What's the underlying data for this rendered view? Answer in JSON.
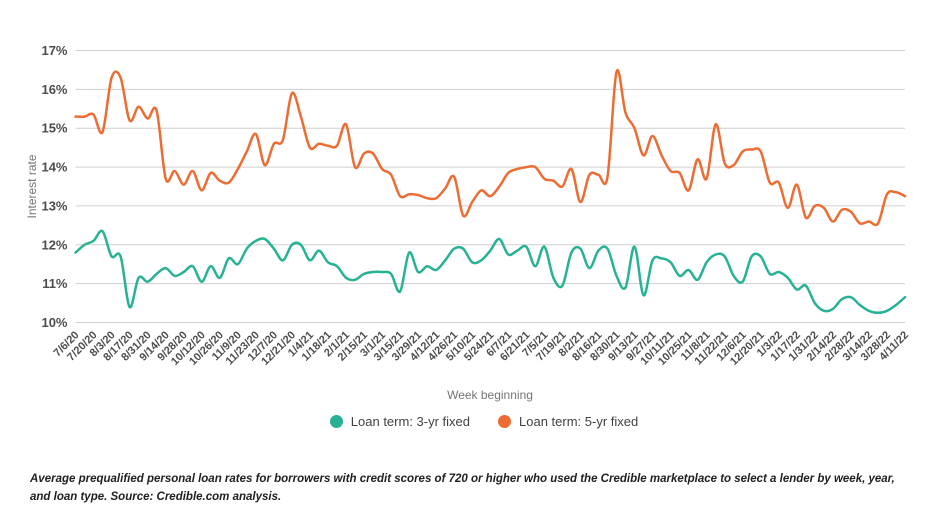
{
  "chart_data": {
    "type": "line",
    "title": "",
    "xlabel": "Week beginning",
    "ylabel": "Interest rate",
    "ylim": [
      10,
      17
    ],
    "yticks": [
      "10%",
      "11%",
      "12%",
      "13%",
      "14%",
      "15%",
      "16%",
      "17%"
    ],
    "grid": "horizontal",
    "legend_position": "bottom",
    "x_label_every_n_points": 2,
    "x": [
      "7/6/20",
      "7/13/20",
      "7/20/20",
      "7/27/20",
      "8/3/20",
      "8/10/20",
      "8/17/20",
      "8/24/20",
      "8/31/20",
      "9/7/20",
      "9/14/20",
      "9/21/20",
      "9/28/20",
      "10/5/20",
      "10/12/20",
      "10/19/20",
      "10/26/20",
      "11/2/20",
      "11/9/20",
      "11/16/20",
      "11/23/20",
      "11/30/20",
      "12/7/20",
      "12/14/20",
      "12/21/20",
      "12/28/20",
      "1/4/21",
      "1/11/21",
      "1/18/21",
      "1/25/21",
      "2/1/21",
      "2/8/21",
      "2/15/21",
      "2/22/21",
      "3/1/21",
      "3/8/21",
      "3/15/21",
      "3/22/21",
      "3/29/21",
      "4/5/21",
      "4/12/21",
      "4/19/21",
      "4/26/21",
      "5/3/21",
      "5/10/21",
      "5/17/21",
      "5/24/21",
      "5/31/21",
      "6/7/21",
      "6/14/21",
      "6/21/21",
      "6/28/21",
      "7/5/21",
      "7/12/21",
      "7/19/21",
      "7/26/21",
      "8/2/21",
      "8/9/21",
      "8/16/21",
      "8/23/21",
      "8/30/21",
      "9/6/21",
      "9/13/21",
      "9/20/21",
      "9/27/21",
      "10/4/21",
      "10/11/21",
      "10/18/21",
      "10/25/21",
      "11/1/21",
      "11/8/21",
      "11/15/21",
      "11/22/21",
      "11/29/21",
      "12/6/21",
      "12/13/21",
      "12/20/21",
      "12/27/21",
      "1/3/22",
      "1/10/22",
      "1/17/22",
      "1/24/22",
      "1/31/22",
      "2/7/22",
      "2/14/22",
      "2/21/22",
      "2/28/22",
      "3/7/22",
      "3/14/22",
      "3/21/22",
      "3/28/22",
      "4/4/22",
      "4/11/22"
    ],
    "series": [
      {
        "name": "Loan term: 3-yr fixed",
        "color": "#26b293",
        "values": [
          11.8,
          12.0,
          12.1,
          12.35,
          11.7,
          11.7,
          10.4,
          11.15,
          11.05,
          11.25,
          11.4,
          11.2,
          11.3,
          11.45,
          11.05,
          11.45,
          11.15,
          11.65,
          11.5,
          11.9,
          12.1,
          12.15,
          11.9,
          11.6,
          12.0,
          12.0,
          11.6,
          11.85,
          11.55,
          11.45,
          11.15,
          11.1,
          11.25,
          11.3,
          11.3,
          11.25,
          10.8,
          11.8,
          11.3,
          11.45,
          11.35,
          11.6,
          11.9,
          11.9,
          11.55,
          11.6,
          11.85,
          12.15,
          11.75,
          11.85,
          11.95,
          11.45,
          11.95,
          11.15,
          10.95,
          11.8,
          11.9,
          11.4,
          11.85,
          11.9,
          11.2,
          10.9,
          11.95,
          10.7,
          11.6,
          11.65,
          11.55,
          11.2,
          11.35,
          11.1,
          11.55,
          11.75,
          11.7,
          11.2,
          11.05,
          11.7,
          11.7,
          11.25,
          11.3,
          11.15,
          10.85,
          10.95,
          10.5,
          10.3,
          10.35,
          10.6,
          10.65,
          10.45,
          10.3,
          10.25,
          10.3,
          10.45,
          10.65
        ]
      },
      {
        "name": "Loan term: 5-yr fixed",
        "color": "#ed6c33",
        "values": [
          15.3,
          15.3,
          15.35,
          14.9,
          16.3,
          16.3,
          15.2,
          15.55,
          15.25,
          15.45,
          13.7,
          13.9,
          13.55,
          13.9,
          13.4,
          13.85,
          13.65,
          13.6,
          13.95,
          14.4,
          14.85,
          14.05,
          14.6,
          14.7,
          15.9,
          15.3,
          14.5,
          14.6,
          14.55,
          14.55,
          15.1,
          14.0,
          14.35,
          14.35,
          13.95,
          13.8,
          13.25,
          13.3,
          13.28,
          13.2,
          13.2,
          13.45,
          13.75,
          12.75,
          13.1,
          13.4,
          13.25,
          13.5,
          13.85,
          13.95,
          14.0,
          14.0,
          13.7,
          13.65,
          13.5,
          13.95,
          13.1,
          13.8,
          13.8,
          13.75,
          16.45,
          15.4,
          15.0,
          14.3,
          14.8,
          14.3,
          13.9,
          13.85,
          13.4,
          14.2,
          13.7,
          15.1,
          14.1,
          14.05,
          14.4,
          14.45,
          14.4,
          13.6,
          13.6,
          12.95,
          13.55,
          12.7,
          13.0,
          12.95,
          12.6,
          12.9,
          12.85,
          12.55,
          12.6,
          12.55,
          13.3,
          13.35,
          13.25
        ]
      }
    ]
  },
  "caption": "Average prequalified personal loan rates for borrowers with credit scores of 720 or higher who used the Credible marketplace to select a lender by week, year, and loan type. Source: Credible.com analysis."
}
